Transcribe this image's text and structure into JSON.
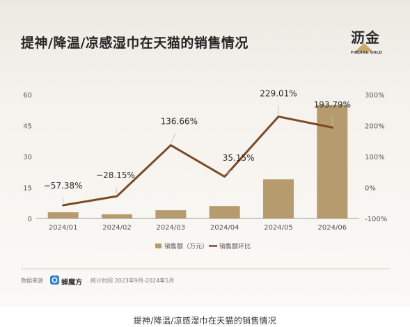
{
  "title": "提神/降温/凉感湿巾在天猫的销售情况",
  "logo": {
    "name_cn": "沥金",
    "name_en": "FINDING GOLD"
  },
  "source": {
    "label": "数据来源",
    "name": "蝉魔方",
    "time": "统计时间 2023年9月-2024年5月"
  },
  "caption": "提神/降温/凉感湿巾在天猫的销售情况",
  "colors": {
    "bar": "#b59b6e",
    "line": "#7a4a26",
    "connector": "#bdbdbd"
  },
  "chart_data": {
    "type": "bar",
    "categories": [
      "2024/01",
      "2024/02",
      "2024/03",
      "2024/04",
      "2024/05",
      "2024/06"
    ],
    "series": [
      {
        "name": "销售额（万元）",
        "type": "bar",
        "axis": "left",
        "values": [
          3,
          2,
          4,
          6,
          19,
          55
        ]
      },
      {
        "name": "销售额环比",
        "type": "line",
        "axis": "right",
        "values": [
          -57.38,
          -28.15,
          136.66,
          35.15,
          229.01,
          193.79
        ],
        "labels": [
          "−57.38%",
          "−28.15%",
          "136.66%",
          "35.15%",
          "229.01%",
          "193.79%"
        ]
      }
    ],
    "y_left": {
      "ticks": [
        "0",
        "15",
        "30",
        "45",
        "60"
      ],
      "range": [
        0,
        60
      ]
    },
    "y_right": {
      "ticks": [
        "-100%",
        "0%",
        "100%",
        "200%",
        "300%"
      ],
      "range": [
        -100,
        300
      ]
    },
    "grid": false,
    "legend_position": "bottom-center"
  }
}
